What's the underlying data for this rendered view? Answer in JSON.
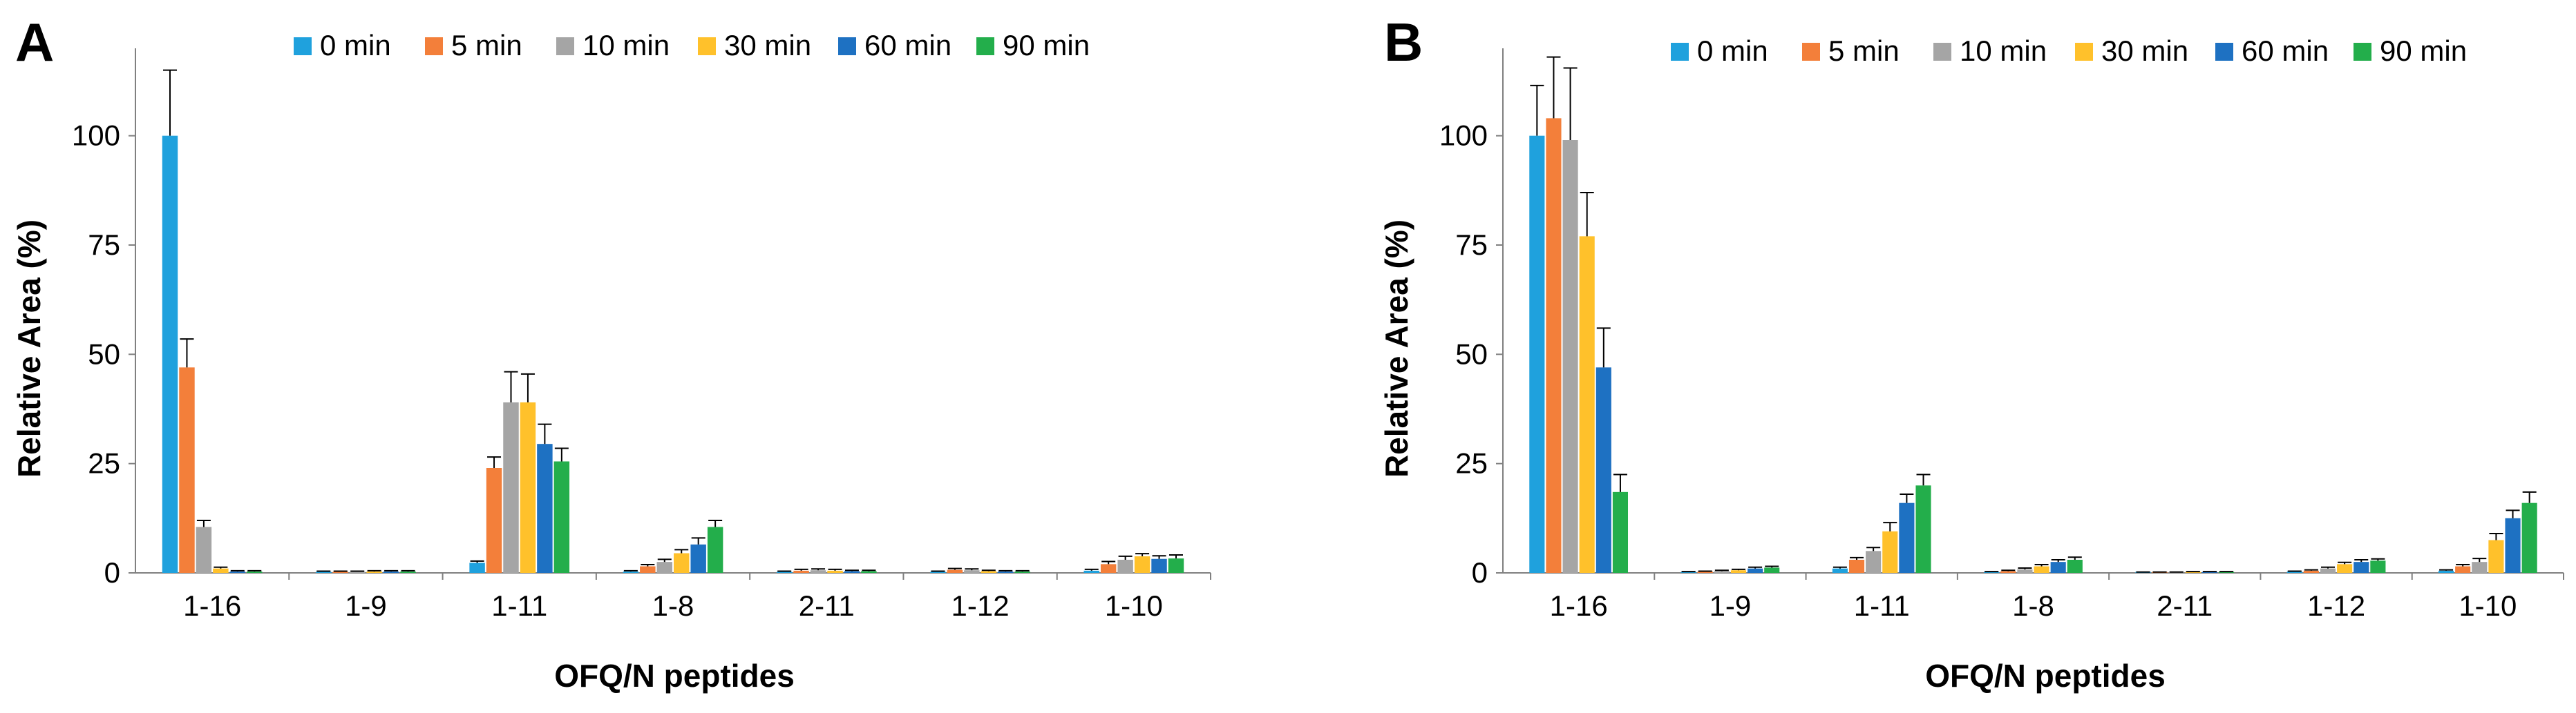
{
  "chart_data": [
    {
      "panel": "A",
      "type": "bar",
      "xlabel": "OFQ/N peptides",
      "ylabel": "Relative Area (%)",
      "ylim": [
        0,
        120
      ],
      "yticks": [
        0,
        25,
        50,
        75,
        100
      ],
      "legend_placement": "top",
      "categories": [
        "1-16",
        "1-9",
        "1-11",
        "1-8",
        "2-11",
        "1-12",
        "1-10"
      ],
      "series": [
        {
          "name": "0 min",
          "color": "#1FA1DD",
          "values": [
            100,
            0.2,
            2.3,
            0.3,
            0.2,
            0.2,
            0.5
          ],
          "errors": [
            15,
            0.2,
            0.4,
            0.2,
            0.2,
            0.2,
            0.3
          ]
        },
        {
          "name": "5 min",
          "color": "#F37F3A",
          "values": [
            47,
            0.2,
            24,
            1.5,
            0.5,
            0.7,
            2.0
          ],
          "errors": [
            6.5,
            0.2,
            2.5,
            0.4,
            0.3,
            0.3,
            0.6
          ]
        },
        {
          "name": "10 min",
          "color": "#A5A5A5",
          "values": [
            10.5,
            0.2,
            39,
            2.5,
            0.6,
            0.6,
            3.0
          ],
          "errors": [
            1.5,
            0.2,
            7,
            0.6,
            0.3,
            0.3,
            0.8
          ]
        },
        {
          "name": "30 min",
          "color": "#FFC12B",
          "values": [
            1.0,
            0.3,
            39,
            4.5,
            0.5,
            0.4,
            3.8
          ],
          "errors": [
            0.3,
            0.2,
            6.5,
            0.8,
            0.3,
            0.2,
            0.6
          ]
        },
        {
          "name": "60 min",
          "color": "#1E71C2",
          "values": [
            0.3,
            0.3,
            29.5,
            6.5,
            0.4,
            0.3,
            3.2
          ],
          "errors": [
            0.2,
            0.2,
            4.5,
            1.5,
            0.2,
            0.2,
            0.7
          ]
        },
        {
          "name": "90 min",
          "color": "#23AE4B",
          "values": [
            0.3,
            0.3,
            25.5,
            10.5,
            0.4,
            0.3,
            3.3
          ],
          "errors": [
            0.2,
            0.2,
            3,
            1.5,
            0.2,
            0.2,
            0.8
          ]
        }
      ]
    },
    {
      "panel": "B",
      "type": "bar",
      "xlabel": "OFQ/N peptides",
      "ylabel": "Relative Area (%)",
      "ylim": [
        0,
        120
      ],
      "yticks": [
        0,
        25,
        50,
        75,
        100
      ],
      "legend_placement": "top",
      "categories": [
        "1-16",
        "1-9",
        "1-11",
        "1-8",
        "2-11",
        "1-12",
        "1-10"
      ],
      "series": [
        {
          "name": "0 min",
          "color": "#1FA1DD",
          "values": [
            100,
            0.2,
            1.0,
            0.2,
            0.1,
            0.3,
            0.5
          ],
          "errors": [
            11.5,
            0.1,
            0.3,
            0.1,
            0.1,
            0.1,
            0.2
          ]
        },
        {
          "name": "5 min",
          "color": "#F37F3A",
          "values": [
            104,
            0.3,
            3.0,
            0.4,
            0.1,
            0.5,
            1.5
          ],
          "errors": [
            14,
            0.1,
            0.5,
            0.2,
            0.1,
            0.2,
            0.4
          ]
        },
        {
          "name": "10 min",
          "color": "#A5A5A5",
          "values": [
            99,
            0.4,
            5.0,
            0.8,
            0.1,
            1.0,
            2.5
          ],
          "errors": [
            16.5,
            0.2,
            0.8,
            0.3,
            0.1,
            0.3,
            0.8
          ]
        },
        {
          "name": "30 min",
          "color": "#FFC12B",
          "values": [
            77,
            0.6,
            9.5,
            1.5,
            0.2,
            2.0,
            7.5
          ],
          "errors": [
            10,
            0.2,
            2,
            0.4,
            0.1,
            0.4,
            1.5
          ]
        },
        {
          "name": "60 min",
          "color": "#1E71C2",
          "values": [
            47,
            1.0,
            16,
            2.5,
            0.2,
            2.5,
            12.5
          ],
          "errors": [
            9,
            0.3,
            2,
            0.5,
            0.1,
            0.5,
            1.8
          ]
        },
        {
          "name": "90 min",
          "color": "#23AE4B",
          "values": [
            18.5,
            1.2,
            20,
            3.0,
            0.2,
            2.8,
            16
          ],
          "errors": [
            4,
            0.3,
            2.5,
            0.6,
            0.1,
            0.4,
            2.5
          ]
        }
      ]
    }
  ]
}
